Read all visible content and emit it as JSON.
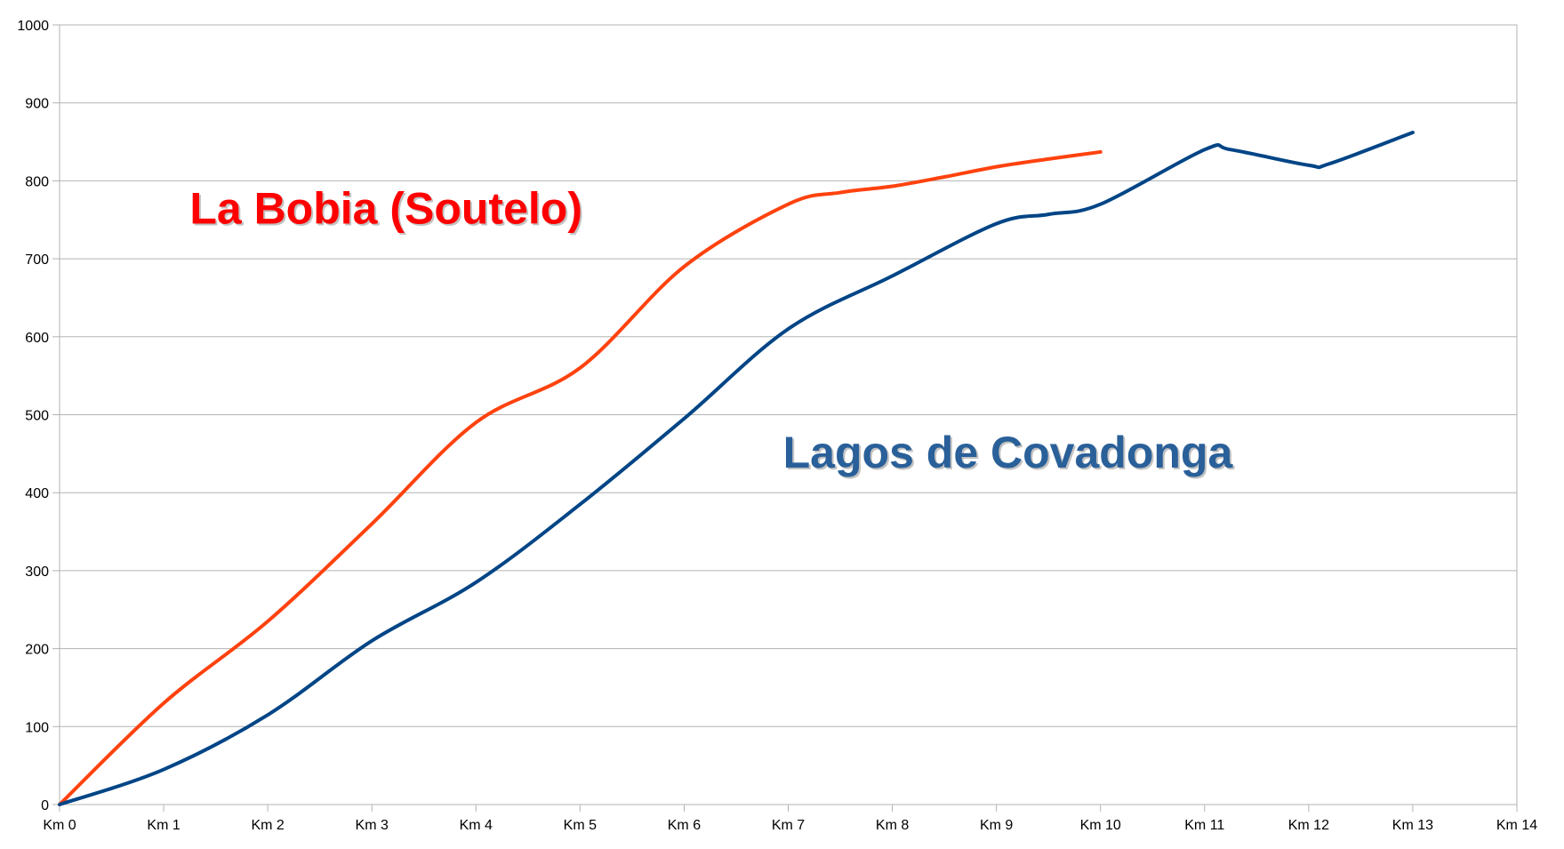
{
  "chart_data": {
    "type": "line",
    "title": "",
    "xlabel": "",
    "ylabel": "",
    "x_tick_labels": [
      "Km 0",
      "Km 1",
      "Km 2",
      "Km 3",
      "Km 4",
      "Km 5",
      "Km 6",
      "Km 7",
      "Km 8",
      "Km 9",
      "Km 10",
      "Km 11",
      "Km 12",
      "Km 13",
      "Km 14"
    ],
    "y_tick_labels": [
      "0",
      "100",
      "200",
      "300",
      "400",
      "500",
      "600",
      "700",
      "800",
      "900",
      "1000"
    ],
    "xlim": [
      0,
      14
    ],
    "ylim": [
      0,
      1000
    ],
    "grid": "horizontal",
    "legend": "none",
    "series": [
      {
        "name": "La Bobia (Soutelo)",
        "color": "#ff420e",
        "x": [
          0,
          1,
          2,
          3,
          4,
          5,
          6,
          7,
          7.5,
          8,
          8.5,
          9,
          9.5,
          10
        ],
        "values": [
          0,
          130,
          235,
          360,
          490,
          560,
          690,
          770,
          785,
          793,
          805,
          818,
          828,
          837
        ]
      },
      {
        "name": "Lagos de Covadonga",
        "color": "#004586",
        "x": [
          0,
          1,
          2,
          3,
          4,
          5,
          6,
          7,
          8,
          9,
          9.5,
          10,
          11,
          11.25,
          12,
          12.2,
          13
        ],
        "values": [
          0,
          45,
          115,
          210,
          285,
          385,
          495,
          610,
          678,
          745,
          757,
          770,
          840,
          840,
          820,
          822,
          862
        ]
      }
    ],
    "annotations": [
      {
        "text": "La Bobia (Soutelo)",
        "color": "#ff0000",
        "at_x": 1.25,
        "at_y": 745
      },
      {
        "text": "Lagos de Covadonga",
        "color": "#2a6099",
        "at_x": 6.95,
        "at_y": 432
      }
    ]
  }
}
